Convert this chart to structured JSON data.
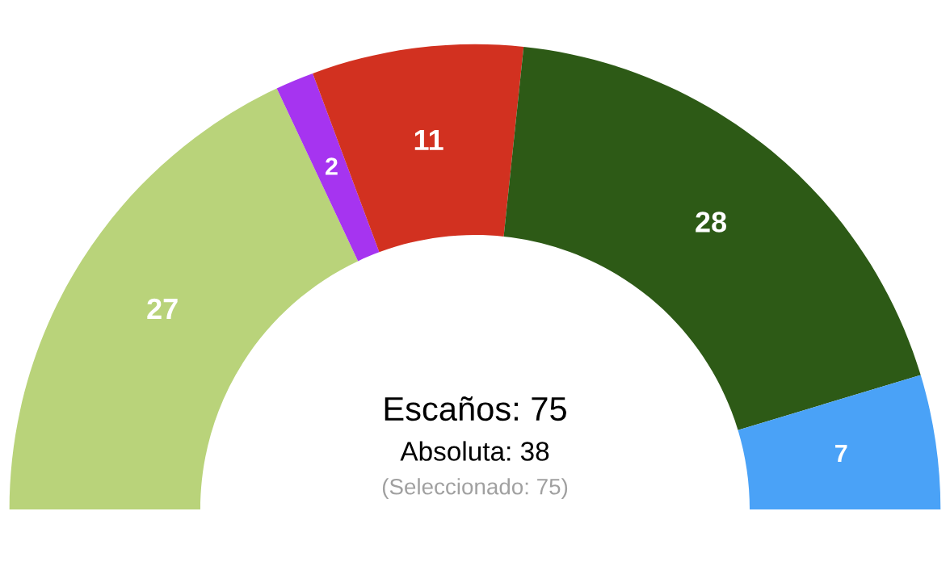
{
  "chart_data": {
    "type": "donut",
    "categories": [
      null,
      null,
      null,
      null,
      null
    ],
    "values": [
      27,
      2,
      11,
      28,
      7
    ],
    "colors": [
      "#b9d37a",
      "#a634f0",
      "#d23120",
      "#2d5a16",
      "#4aa2f7"
    ],
    "data_labels": true,
    "annotations": [
      "Escaños: 75",
      "Absoluta: 38",
      "(Seleccionado: 75)"
    ]
  }
}
